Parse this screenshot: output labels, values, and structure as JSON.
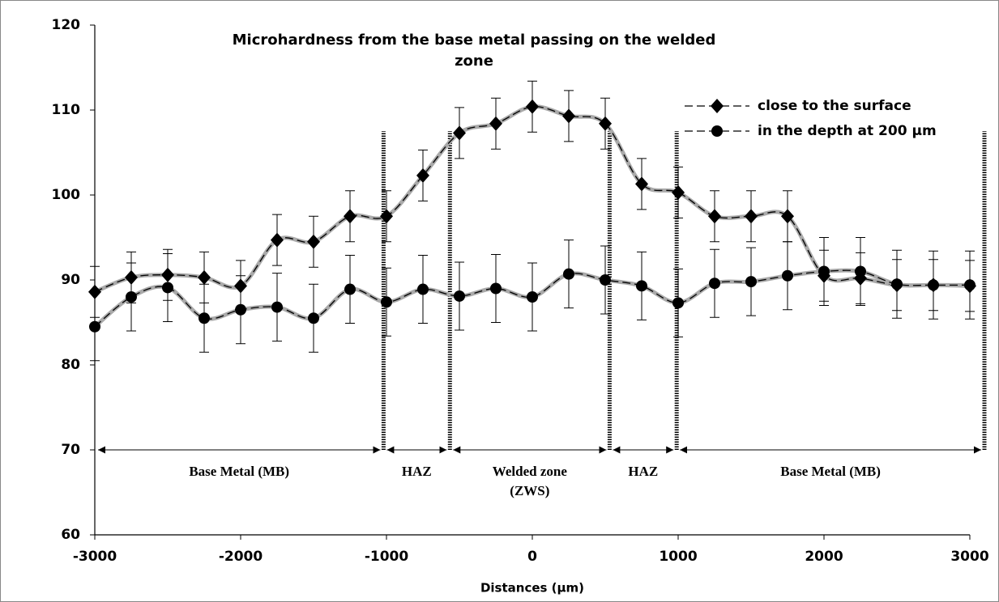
{
  "chart_data": {
    "type": "line",
    "title": [
      "Microhardness from the base metal passing on the welded",
      "zone"
    ],
    "xlabel": "Distances (µm)",
    "x": [
      -3000,
      -2750,
      -2500,
      -2250,
      -2000,
      -1750,
      -1500,
      -1250,
      -1000,
      -750,
      -500,
      -250,
      0,
      250,
      500,
      750,
      1000,
      1250,
      1500,
      1750,
      2000,
      2250,
      2500,
      2750,
      3000
    ],
    "series": [
      {
        "name": "close to the surface",
        "color": "#000000",
        "marker": "diamond",
        "error": 3,
        "values": [
          88.6,
          90.3,
          90.6,
          90.3,
          89.3,
          94.7,
          94.5,
          97.5,
          97.5,
          102.3,
          107.3,
          108.4,
          110.4,
          109.3,
          108.4,
          101.3,
          100.3,
          97.5,
          97.5,
          97.5,
          90.5,
          90.2,
          89.4,
          89.4,
          89.3
        ]
      },
      {
        "name": "in the depth at 200 µm",
        "color": "#000000",
        "marker": "circle",
        "error": 4,
        "values": [
          84.5,
          88.0,
          89.1,
          85.5,
          86.5,
          86.8,
          85.5,
          88.9,
          87.4,
          88.9,
          88.1,
          89.0,
          88.0,
          90.7,
          90.0,
          89.3,
          87.3,
          89.6,
          89.8,
          90.5,
          91.0,
          91.0,
          89.5,
          89.4,
          89.4
        ]
      }
    ],
    "zone_lines": [
      -1020,
      -565,
      530,
      990,
      3100
    ],
    "zone_line_range": [
      70,
      107.5
    ],
    "zones": [
      {
        "label": [
          "Base Metal (MB)"
        ],
        "from": -3000,
        "to": -1020
      },
      {
        "label": [
          "HAZ"
        ],
        "from": -1020,
        "to": -565
      },
      {
        "label": [
          "Welded zone",
          "(ZWS)"
        ],
        "from": -565,
        "to": 530
      },
      {
        "label": [
          "HAZ"
        ],
        "from": 530,
        "to": 990
      },
      {
        "label": [
          "Base Metal (MB)"
        ],
        "from": 990,
        "to": 3100
      }
    ],
    "zone_arrow_y": 70,
    "xlim": [
      -3000,
      3000
    ],
    "xticks": [
      -3000,
      -2000,
      -1000,
      0,
      1000,
      2000,
      3000
    ],
    "ylim": [
      60,
      120
    ],
    "yticks": [
      60,
      70,
      80,
      90,
      100,
      110,
      120
    ],
    "legend": "upper right",
    "grid": false
  }
}
